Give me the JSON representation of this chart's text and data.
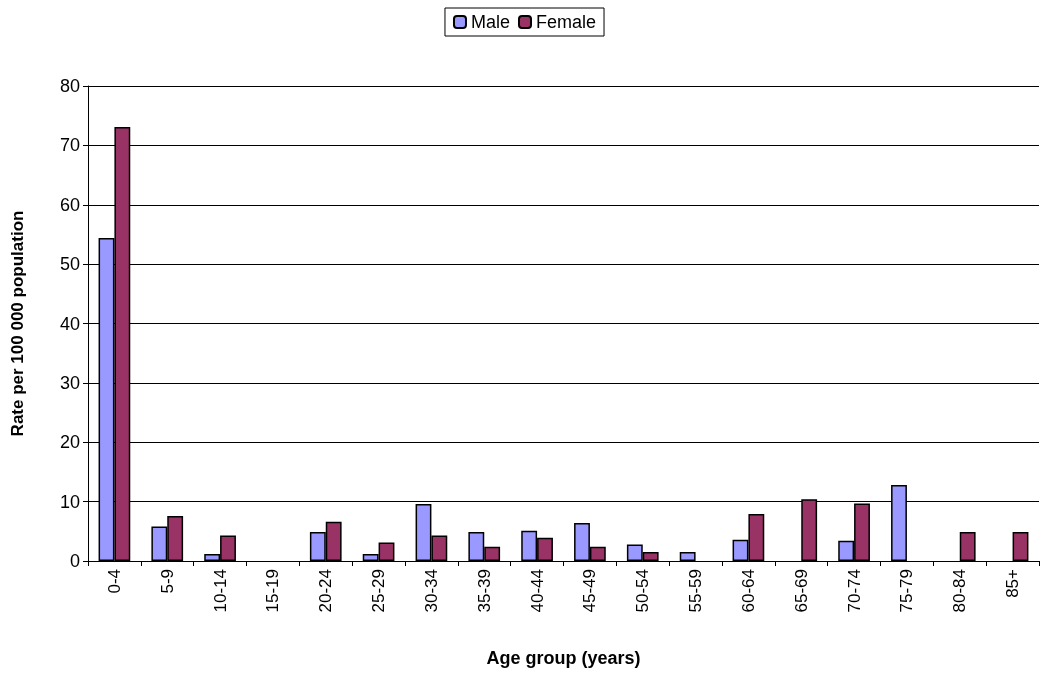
{
  "chart_data": {
    "type": "bar",
    "xlabel": "Age group (years)",
    "ylabel": "Rate per 100 000 population",
    "categories": [
      "0-4",
      "5-9",
      "10-14",
      "15-19",
      "20-24",
      "25-29",
      "30-34",
      "35-39",
      "40-44",
      "45-49",
      "50-54",
      "55-59",
      "60-64",
      "65-69",
      "70-74",
      "75-79",
      "80-84",
      "85+"
    ],
    "series": [
      {
        "name": "Male",
        "color": "#9999ff",
        "values": [
          54.4,
          5.8,
          1.2,
          null,
          4.9,
          1.2,
          9.6,
          4.9,
          5.1,
          6.4,
          2.8,
          1.5,
          3.6,
          null,
          3.4,
          12.8,
          null,
          null
        ]
      },
      {
        "name": "Female",
        "color": "#993366",
        "values": [
          73.1,
          7.6,
          4.3,
          null,
          6.6,
          3.1,
          4.3,
          2.4,
          3.9,
          2.4,
          1.5,
          null,
          7.9,
          10.4,
          9.7,
          null,
          4.9,
          4.9
        ]
      }
    ],
    "ylim": [
      0,
      80
    ],
    "yticks": [
      0,
      10,
      20,
      30,
      40,
      50,
      60,
      70,
      80
    ],
    "grid": "y",
    "legend": "top"
  }
}
